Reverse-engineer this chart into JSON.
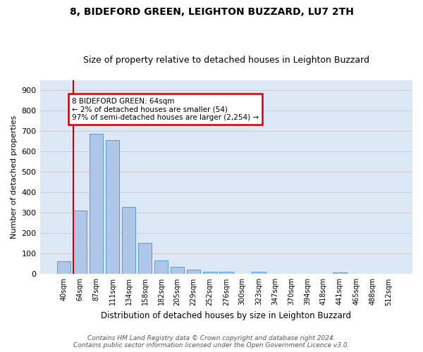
{
  "title": "8, BIDEFORD GREEN, LEIGHTON BUZZARD, LU7 2TH",
  "subtitle": "Size of property relative to detached houses in Leighton Buzzard",
  "xlabel": "Distribution of detached houses by size in Leighton Buzzard",
  "ylabel": "Number of detached properties",
  "footer_line1": "Contains HM Land Registry data © Crown copyright and database right 2024.",
  "footer_line2": "Contains public sector information licensed under the Open Government Licence v3.0.",
  "bar_labels": [
    "40sqm",
    "64sqm",
    "87sqm",
    "111sqm",
    "134sqm",
    "158sqm",
    "182sqm",
    "205sqm",
    "229sqm",
    "252sqm",
    "276sqm",
    "300sqm",
    "323sqm",
    "347sqm",
    "370sqm",
    "394sqm",
    "418sqm",
    "441sqm",
    "465sqm",
    "488sqm",
    "512sqm"
  ],
  "bar_values": [
    63,
    310,
    687,
    655,
    330,
    152,
    68,
    35,
    22,
    13,
    12,
    0,
    10,
    0,
    0,
    0,
    0,
    8,
    0,
    0,
    0
  ],
  "bar_color": "#aec6e8",
  "bar_edge_color": "#5b9bd5",
  "highlight_bar_index": 1,
  "highlight_color": "#cc0000",
  "annotation_line1": "8 BIDEFORD GREEN: 64sqm",
  "annotation_line2": "← 2% of detached houses are smaller (54)",
  "annotation_line3": "97% of semi-detached houses are larger (2,254) →",
  "annotation_box_color": "#cc0000",
  "ylim": [
    0,
    950
  ],
  "yticks": [
    0,
    100,
    200,
    300,
    400,
    500,
    600,
    700,
    800,
    900
  ],
  "grid_color": "#cccccc",
  "background_color": "#dce8f5",
  "title_fontsize": 10,
  "subtitle_fontsize": 9,
  "footer_fontsize": 6.5
}
